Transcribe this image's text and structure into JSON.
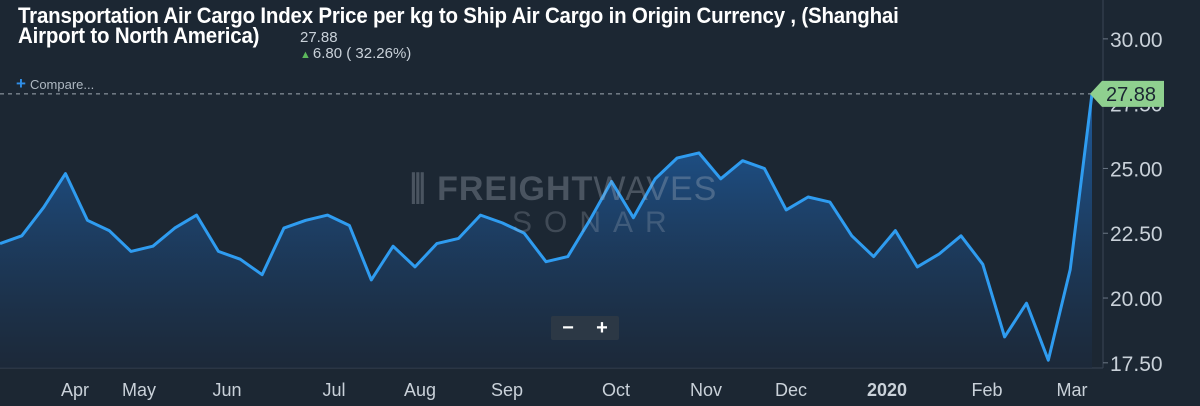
{
  "title": "Transportation Air Cargo Index Price per kg to Ship Air Cargo in Origin Currency , (Shanghai Airport to North America)",
  "price": {
    "current": "27.88",
    "change": "6.80 ( 32.26%)"
  },
  "compare_label": "Compare...",
  "zoom": {
    "out_label": "−",
    "in_label": "+"
  },
  "watermark": {
    "brand_bold": "FREIGHT",
    "brand_light": "WAVES",
    "product": "SONAR"
  },
  "colors": {
    "background": "#1c2733",
    "line": "#2f9cf0",
    "last_value_badge": "#8fd08f",
    "up": "#5cb85c"
  },
  "chart_data": {
    "type": "area",
    "title": "Transportation Air Cargo Index Price per kg to Ship Air Cargo in Origin Currency , (Shanghai Airport to North America)",
    "x_axis_labels": [
      "Apr",
      "May",
      "Jun",
      "Jul",
      "Aug",
      "Sep",
      "Oct",
      "Nov",
      "Dec",
      "2020",
      "Feb",
      "Mar"
    ],
    "y_axis_labels": [
      "17.50",
      "20.00",
      "22.50",
      "25.00",
      "27.50",
      "30.00"
    ],
    "y_ticks": [
      17.5,
      20.0,
      22.5,
      25.0,
      27.5,
      30.0
    ],
    "ylim": [
      17.3,
      31.5
    ],
    "last_value": 27.88,
    "last_value_label": "27.88",
    "grid": false,
    "series": [
      {
        "values": [
          22.1,
          22.4,
          23.5,
          24.8,
          23.0,
          22.6,
          21.8,
          22.0,
          22.7,
          23.2,
          21.8,
          21.5,
          20.9,
          22.7,
          23.0,
          23.2,
          22.8,
          20.7,
          22.0,
          21.2,
          22.1,
          22.3,
          23.2,
          22.9,
          22.5,
          21.4,
          21.6,
          23.0,
          24.5,
          23.1,
          24.6,
          25.4,
          25.6,
          24.6,
          25.3,
          25.0,
          23.4,
          23.9,
          23.7,
          22.4,
          21.6,
          22.6,
          21.2,
          21.7,
          22.4,
          21.3,
          18.5,
          19.8,
          17.6,
          21.1,
          27.88
        ]
      }
    ]
  }
}
